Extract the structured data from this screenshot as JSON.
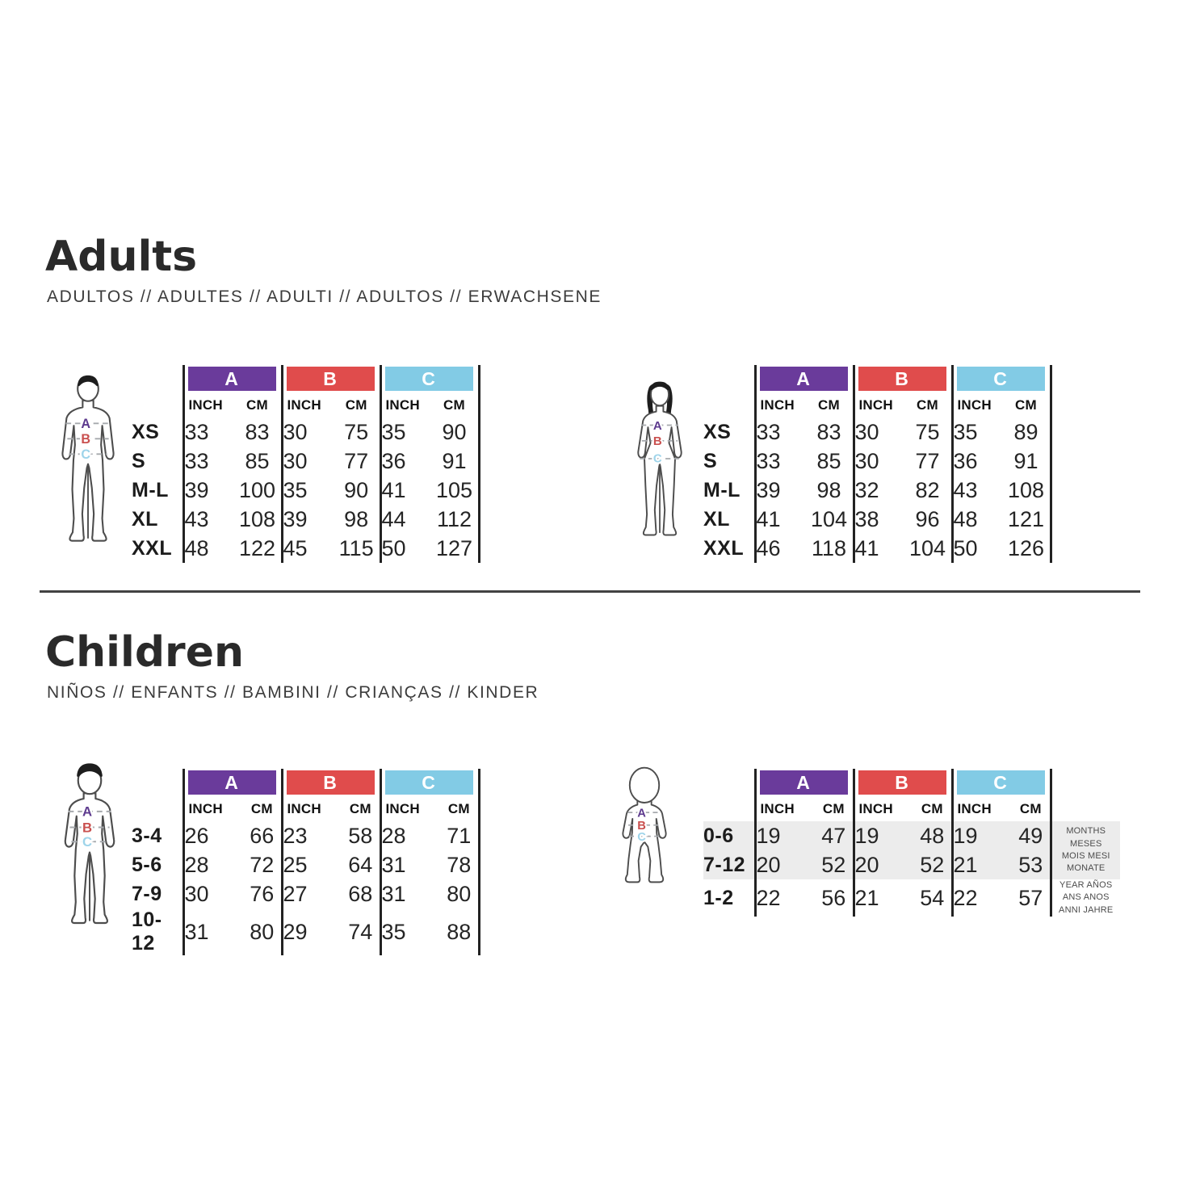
{
  "colors": {
    "group_a": "#6a3b9b",
    "group_b": "#e04c4c",
    "group_c": "#82cbe5",
    "letter_a": "#5d3a8e",
    "letter_b": "#c9504f",
    "letter_c": "#9ed4ea",
    "highlight_row": "#ececec"
  },
  "figure_labels": [
    "A",
    "B",
    "C"
  ],
  "adults": {
    "title": "Adults",
    "subtitle": "ADULTOS // ADULTES // ADULTI // ADULTOS // ERWACHSENE",
    "men_table": {
      "groups": [
        "A",
        "B",
        "C"
      ],
      "units": [
        "INCH",
        "CM"
      ],
      "rows": [
        {
          "size": "XS",
          "values": [
            "33",
            "83",
            "30",
            "75",
            "35",
            "90"
          ]
        },
        {
          "size": "S",
          "values": [
            "33",
            "85",
            "30",
            "77",
            "36",
            "91"
          ]
        },
        {
          "size": "M-L",
          "values": [
            "39",
            "100",
            "35",
            "90",
            "41",
            "105"
          ]
        },
        {
          "size": "XL",
          "values": [
            "43",
            "108",
            "39",
            "98",
            "44",
            "112"
          ]
        },
        {
          "size": "XXL",
          "values": [
            "48",
            "122",
            "45",
            "115",
            "50",
            "127"
          ]
        }
      ]
    },
    "women_table": {
      "groups": [
        "A",
        "B",
        "C"
      ],
      "units": [
        "INCH",
        "CM"
      ],
      "rows": [
        {
          "size": "XS",
          "values": [
            "33",
            "83",
            "30",
            "75",
            "35",
            "89"
          ]
        },
        {
          "size": "S",
          "values": [
            "33",
            "85",
            "30",
            "77",
            "36",
            "91"
          ]
        },
        {
          "size": "M-L",
          "values": [
            "39",
            "98",
            "32",
            "82",
            "43",
            "108"
          ]
        },
        {
          "size": "XL",
          "values": [
            "41",
            "104",
            "38",
            "96",
            "48",
            "121"
          ]
        },
        {
          "size": "XXL",
          "values": [
            "46",
            "118",
            "41",
            "104",
            "50",
            "126"
          ]
        }
      ]
    }
  },
  "children": {
    "title": "Children",
    "subtitle": "NIÑOS // ENFANTS // BAMBINI // CRIANÇAS // KINDER",
    "child_table": {
      "groups": [
        "A",
        "B",
        "C"
      ],
      "units": [
        "INCH",
        "CM"
      ],
      "rows": [
        {
          "size": "3-4",
          "values": [
            "26",
            "66",
            "23",
            "58",
            "28",
            "71"
          ]
        },
        {
          "size": "5-6",
          "values": [
            "28",
            "72",
            "25",
            "64",
            "31",
            "78"
          ]
        },
        {
          "size": "7-9",
          "values": [
            "30",
            "76",
            "27",
            "68",
            "31",
            "80"
          ]
        },
        {
          "size": "10-12",
          "values": [
            "31",
            "80",
            "29",
            "74",
            "35",
            "88"
          ]
        }
      ]
    },
    "baby_table": {
      "groups": [
        "A",
        "B",
        "C"
      ],
      "units": [
        "INCH",
        "CM"
      ],
      "rows": [
        {
          "size": "0-6",
          "values": [
            "19",
            "47",
            "19",
            "48",
            "19",
            "49"
          ],
          "highlight": true
        },
        {
          "size": "7-12",
          "values": [
            "20",
            "52",
            "20",
            "52",
            "21",
            "53"
          ],
          "highlight": true
        },
        {
          "size": "1-2",
          "values": [
            "22",
            "56",
            "21",
            "54",
            "22",
            "57"
          ]
        }
      ],
      "notes": [
        {
          "row": 0,
          "rowspan": 2,
          "gray": true,
          "lines": [
            "MONTHS",
            "MESES",
            "MOIS MESI",
            "MONATE"
          ]
        },
        {
          "row": 2,
          "rowspan": 1,
          "gray": false,
          "lines": [
            "YEAR AÑOS",
            "ANS ANOS",
            "ANNI JAHRE"
          ]
        }
      ]
    }
  }
}
